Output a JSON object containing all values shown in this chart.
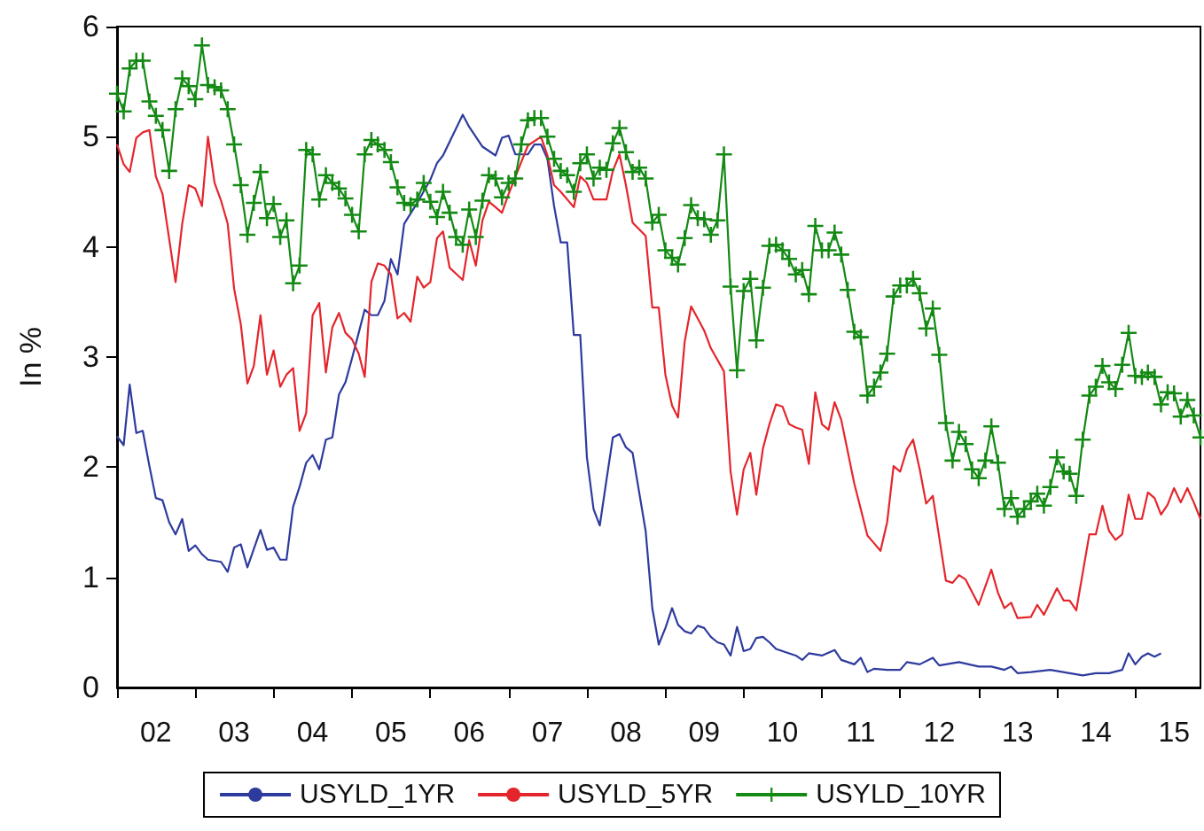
{
  "chart_data": {
    "type": "line",
    "ylabel": "In %",
    "xlim": [
      "2002-01",
      "2015-11"
    ],
    "xticks": [
      {
        "value": "2002-01",
        "label": null
      },
      {
        "value": "2002-07",
        "label": "02"
      },
      {
        "value": "2003-01",
        "label": null
      },
      {
        "value": "2003-07",
        "label": "03"
      },
      {
        "value": "2004-01",
        "label": null
      },
      {
        "value": "2004-07",
        "label": "04"
      },
      {
        "value": "2005-01",
        "label": null
      },
      {
        "value": "2005-07",
        "label": "05"
      },
      {
        "value": "2006-01",
        "label": null
      },
      {
        "value": "2006-07",
        "label": "06"
      },
      {
        "value": "2007-01",
        "label": null
      },
      {
        "value": "2007-07",
        "label": "07"
      },
      {
        "value": "2008-01",
        "label": null
      },
      {
        "value": "2008-07",
        "label": "08"
      },
      {
        "value": "2009-01",
        "label": null
      },
      {
        "value": "2009-07",
        "label": "09"
      },
      {
        "value": "2010-01",
        "label": null
      },
      {
        "value": "2010-07",
        "label": "10"
      },
      {
        "value": "2011-01",
        "label": null
      },
      {
        "value": "2011-07",
        "label": "11"
      },
      {
        "value": "2012-01",
        "label": null
      },
      {
        "value": "2012-07",
        "label": "12"
      },
      {
        "value": "2013-01",
        "label": null
      },
      {
        "value": "2013-07",
        "label": "13"
      },
      {
        "value": "2014-01",
        "label": null
      },
      {
        "value": "2014-07",
        "label": "14"
      },
      {
        "value": "2015-01",
        "label": null
      },
      {
        "value": "2015-07",
        "label": "15"
      }
    ],
    "ylim": [
      0,
      6
    ],
    "yticks": [
      0,
      1,
      2,
      3,
      4,
      5,
      6
    ],
    "grid": false,
    "legend": "bottom",
    "marker": "none",
    "series": [
      {
        "name": "USYLD_1YR",
        "color": "#2e3b9e",
        "x": [
          "2002-01",
          "2002-02",
          "2002-03",
          "2002-04",
          "2002-05",
          "2002-06",
          "2002-07",
          "2002-08",
          "2002-09",
          "2002-10",
          "2002-11",
          "2002-12",
          "2003-01",
          "2003-02",
          "2003-03",
          "2003-05",
          "2003-06",
          "2003-07",
          "2003-08",
          "2003-09",
          "2003-11",
          "2003-12",
          "2004-01",
          "2004-02",
          "2004-03",
          "2004-04",
          "2004-05",
          "2004-06",
          "2004-07",
          "2004-08",
          "2004-09",
          "2004-10",
          "2004-11",
          "2004-12",
          "2005-01",
          "2005-02",
          "2005-03",
          "2005-04",
          "2005-05",
          "2005-06",
          "2005-07",
          "2005-08",
          "2005-09",
          "2005-11",
          "2006-01",
          "2006-02",
          "2006-03",
          "2006-06",
          "2006-07",
          "2006-09",
          "2006-11",
          "2006-12",
          "2007-01",
          "2007-02",
          "2007-04",
          "2007-05",
          "2007-06",
          "2007-07",
          "2007-08",
          "2007-09",
          "2007-10",
          "2007-11",
          "2007-12",
          "2008-01",
          "2008-02",
          "2008-03",
          "2008-04",
          "2008-05",
          "2008-06",
          "2008-07",
          "2008-08",
          "2008-10",
          "2008-11",
          "2008-12",
          "2009-01",
          "2009-02",
          "2009-03",
          "2009-04",
          "2009-05",
          "2009-06",
          "2009-07",
          "2009-08",
          "2009-09",
          "2009-10",
          "2009-11",
          "2009-12",
          "2010-01",
          "2010-02",
          "2010-03",
          "2010-04",
          "2010-05",
          "2010-06",
          "2010-08",
          "2010-09",
          "2010-10",
          "2010-11",
          "2011-01",
          "2011-03",
          "2011-04",
          "2011-06",
          "2011-07",
          "2011-08",
          "2011-09",
          "2011-11",
          "2012-01",
          "2012-02",
          "2012-04",
          "2012-06",
          "2012-07",
          "2012-10",
          "2013-01",
          "2013-03",
          "2013-05",
          "2013-06",
          "2013-07",
          "2013-09",
          "2013-12",
          "2014-03",
          "2014-05",
          "2014-07",
          "2014-09",
          "2014-11",
          "2014-12",
          "2015-01",
          "2015-02",
          "2015-03",
          "2015-04",
          "2015-05"
        ],
        "values": [
          2.28,
          2.2,
          2.75,
          2.31,
          2.33,
          2.01,
          1.72,
          1.7,
          1.5,
          1.39,
          1.53,
          1.24,
          1.29,
          1.21,
          1.16,
          1.14,
          1.05,
          1.27,
          1.3,
          1.09,
          1.43,
          1.25,
          1.27,
          1.16,
          1.16,
          1.64,
          1.82,
          2.04,
          2.11,
          1.98,
          2.25,
          2.27,
          2.66,
          2.77,
          2.99,
          3.22,
          3.43,
          3.38,
          3.38,
          3.51,
          3.89,
          3.75,
          4.21,
          4.4,
          4.61,
          4.76,
          4.83,
          5.2,
          5.09,
          4.91,
          4.83,
          4.99,
          5.01,
          4.84,
          4.84,
          4.93,
          4.93,
          4.8,
          4.37,
          4.04,
          4.04,
          3.2,
          3.2,
          2.09,
          1.62,
          1.47,
          1.88,
          2.27,
          2.3,
          2.18,
          2.13,
          1.42,
          0.72,
          0.39,
          0.54,
          0.72,
          0.57,
          0.51,
          0.49,
          0.56,
          0.54,
          0.46,
          0.41,
          0.39,
          0.29,
          0.55,
          0.33,
          0.35,
          0.45,
          0.46,
          0.41,
          0.35,
          0.31,
          0.29,
          0.25,
          0.31,
          0.29,
          0.34,
          0.25,
          0.21,
          0.27,
          0.14,
          0.17,
          0.16,
          0.16,
          0.23,
          0.21,
          0.27,
          0.2,
          0.23,
          0.19,
          0.19,
          0.16,
          0.19,
          0.13,
          0.14,
          0.16,
          0.13,
          0.11,
          0.13,
          0.13,
          0.16,
          0.31,
          0.21,
          0.28,
          0.31,
          0.28,
          0.31
        ]
      },
      {
        "name": "USYLD_5YR",
        "color": "#e4262c",
        "x": [
          "2002-01",
          "2002-02",
          "2002-03",
          "2002-04",
          "2002-05",
          "2002-06",
          "2002-07",
          "2002-08",
          "2002-10",
          "2002-11",
          "2002-12",
          "2003-01",
          "2003-02",
          "2003-03",
          "2003-04",
          "2003-05",
          "2003-06",
          "2003-07",
          "2003-08",
          "2003-09",
          "2003-10",
          "2003-11",
          "2003-12",
          "2004-01",
          "2004-02",
          "2004-03",
          "2004-04",
          "2004-05",
          "2004-06",
          "2004-07",
          "2004-08",
          "2004-09",
          "2004-10",
          "2004-11",
          "2004-12",
          "2005-01",
          "2005-02",
          "2005-03",
          "2005-04",
          "2005-05",
          "2005-06",
          "2005-07",
          "2005-08",
          "2005-09",
          "2005-10",
          "2005-11",
          "2005-12",
          "2006-01",
          "2006-02",
          "2006-03",
          "2006-04",
          "2006-06",
          "2006-07",
          "2006-08",
          "2006-09",
          "2006-10",
          "2006-11",
          "2006-12",
          "2007-01",
          "2007-03",
          "2007-04",
          "2007-06",
          "2007-07",
          "2007-08",
          "2007-09",
          "2007-11",
          "2007-12",
          "2008-01",
          "2008-02",
          "2008-04",
          "2008-05",
          "2008-06",
          "2008-07",
          "2008-08",
          "2008-10",
          "2008-11",
          "2008-12",
          "2009-01",
          "2009-02",
          "2009-03",
          "2009-04",
          "2009-05",
          "2009-06",
          "2009-07",
          "2009-08",
          "2009-10",
          "2009-11",
          "2009-12",
          "2010-01",
          "2010-02",
          "2010-03",
          "2010-04",
          "2010-05",
          "2010-06",
          "2010-07",
          "2010-08",
          "2010-09",
          "2010-10",
          "2010-11",
          "2010-12",
          "2011-01",
          "2011-02",
          "2011-03",
          "2011-04",
          "2011-06",
          "2011-07",
          "2011-08",
          "2011-09",
          "2011-10",
          "2011-11",
          "2011-12",
          "2012-01",
          "2012-02",
          "2012-03",
          "2012-04",
          "2012-05",
          "2012-06",
          "2012-08",
          "2012-09",
          "2012-10",
          "2012-11",
          "2013-01",
          "2013-03",
          "2013-04",
          "2013-05",
          "2013-06",
          "2013-07",
          "2013-09",
          "2013-10",
          "2013-11",
          "2014-01",
          "2014-02",
          "2014-03",
          "2014-04",
          "2014-06",
          "2014-07",
          "2014-08",
          "2014-09",
          "2014-10",
          "2014-11",
          "2014-12",
          "2015-01",
          "2015-02",
          "2015-03",
          "2015-04",
          "2015-05",
          "2015-06",
          "2015-07",
          "2015-08",
          "2015-09",
          "2015-10",
          "2015-11"
        ],
        "values": [
          4.93,
          4.75,
          4.68,
          4.99,
          5.04,
          5.06,
          4.64,
          4.48,
          3.68,
          4.21,
          4.56,
          4.53,
          4.37,
          5.0,
          4.58,
          4.42,
          4.21,
          3.62,
          3.3,
          2.76,
          2.92,
          3.38,
          2.84,
          3.06,
          2.73,
          2.84,
          2.9,
          2.33,
          2.49,
          3.38,
          3.49,
          2.86,
          3.27,
          3.4,
          3.22,
          3.16,
          3.03,
          2.82,
          3.68,
          3.85,
          3.83,
          3.75,
          3.35,
          3.4,
          3.32,
          3.73,
          3.63,
          3.68,
          4.08,
          4.14,
          3.81,
          3.7,
          4.06,
          3.83,
          4.24,
          4.41,
          4.36,
          4.31,
          4.48,
          4.77,
          4.92,
          5.0,
          4.83,
          4.56,
          4.5,
          4.36,
          4.64,
          4.58,
          4.43,
          4.43,
          4.69,
          4.84,
          4.56,
          4.22,
          4.1,
          3.45,
          3.45,
          2.84,
          2.56,
          2.45,
          3.14,
          3.46,
          3.35,
          3.24,
          3.08,
          2.87,
          1.96,
          1.57,
          1.98,
          2.13,
          1.75,
          2.17,
          2.39,
          2.57,
          2.55,
          2.39,
          2.36,
          2.34,
          2.03,
          2.68,
          2.39,
          2.34,
          2.59,
          2.43,
          1.85,
          1.62,
          1.38,
          1.31,
          1.24,
          1.5,
          2.01,
          1.96,
          2.16,
          2.25,
          1.98,
          1.67,
          1.74,
          0.97,
          0.95,
          1.02,
          0.98,
          0.75,
          1.07,
          0.86,
          0.72,
          0.77,
          0.63,
          0.64,
          0.75,
          0.66,
          0.9,
          0.79,
          0.79,
          0.7,
          1.39,
          1.39,
          1.65,
          1.42,
          1.34,
          1.39,
          1.75,
          1.53,
          1.53,
          1.77,
          1.72,
          1.57,
          1.66,
          1.81,
          1.68,
          1.81,
          1.68,
          1.53
        ]
      },
      {
        "name": "USYLD_10YR",
        "color": "#138a13",
        "marker": "cross",
        "x": [
          "2002-01",
          "2002-02",
          "2002-03",
          "2002-04",
          "2002-05",
          "2002-06",
          "2002-07",
          "2002-08",
          "2002-09",
          "2002-10",
          "2002-11",
          "2002-12",
          "2003-01",
          "2003-02",
          "2003-03",
          "2003-04",
          "2003-05",
          "2003-06",
          "2003-07",
          "2003-08",
          "2003-09",
          "2003-10",
          "2003-11",
          "2003-12",
          "2004-01",
          "2004-02",
          "2004-03",
          "2004-04",
          "2004-05",
          "2004-06",
          "2004-07",
          "2004-08",
          "2004-09",
          "2004-10",
          "2004-11",
          "2004-12",
          "2005-01",
          "2005-02",
          "2005-03",
          "2005-04",
          "2005-05",
          "2005-06",
          "2005-07",
          "2005-08",
          "2005-09",
          "2005-10",
          "2005-11",
          "2005-12",
          "2006-01",
          "2006-02",
          "2006-03",
          "2006-04",
          "2006-05",
          "2006-06",
          "2006-07",
          "2006-08",
          "2006-09",
          "2006-10",
          "2006-11",
          "2006-12",
          "2007-01",
          "2007-02",
          "2007-03",
          "2007-04",
          "2007-05",
          "2007-06",
          "2007-07",
          "2007-08",
          "2007-09",
          "2007-10",
          "2007-11",
          "2007-12",
          "2008-01",
          "2008-02",
          "2008-03",
          "2008-04",
          "2008-05",
          "2008-06",
          "2008-07",
          "2008-08",
          "2008-09",
          "2008-10",
          "2008-11",
          "2008-12",
          "2009-01",
          "2009-02",
          "2009-03",
          "2009-04",
          "2009-05",
          "2009-06",
          "2009-07",
          "2009-08",
          "2009-09",
          "2009-10",
          "2009-11",
          "2009-12",
          "2010-01",
          "2010-02",
          "2010-03",
          "2010-04",
          "2010-05",
          "2010-06",
          "2010-07",
          "2010-08",
          "2010-09",
          "2010-10",
          "2010-11",
          "2010-12",
          "2011-01",
          "2011-02",
          "2011-03",
          "2011-04",
          "2011-05",
          "2011-06",
          "2011-07",
          "2011-08",
          "2011-09",
          "2011-10",
          "2011-11",
          "2011-12",
          "2012-01",
          "2012-02",
          "2012-03",
          "2012-04",
          "2012-05",
          "2012-06",
          "2012-07",
          "2012-08",
          "2012-09",
          "2012-10",
          "2012-11",
          "2012-12",
          "2013-01",
          "2013-02",
          "2013-03",
          "2013-04",
          "2013-05",
          "2013-06",
          "2013-07",
          "2013-08",
          "2013-09",
          "2013-10",
          "2013-11",
          "2013-12",
          "2014-01",
          "2014-02",
          "2014-03",
          "2014-04",
          "2014-05",
          "2014-06",
          "2014-07",
          "2014-08",
          "2014-09",
          "2014-10",
          "2014-11",
          "2014-12",
          "2015-01",
          "2015-02",
          "2015-03",
          "2015-04",
          "2015-05",
          "2015-06",
          "2015-07",
          "2015-08",
          "2015-09",
          "2015-10",
          "2015-11"
        ],
        "values": [
          5.39,
          5.23,
          5.62,
          5.69,
          5.69,
          5.32,
          5.19,
          5.06,
          4.69,
          5.25,
          5.53,
          5.46,
          5.34,
          5.83,
          5.47,
          5.45,
          5.42,
          5.25,
          4.93,
          4.56,
          4.11,
          4.4,
          4.68,
          4.26,
          4.39,
          4.09,
          4.24,
          3.67,
          3.83,
          4.88,
          4.84,
          4.43,
          4.65,
          4.58,
          4.53,
          4.44,
          4.29,
          4.14,
          4.84,
          4.97,
          4.93,
          4.88,
          4.77,
          4.54,
          4.4,
          4.38,
          4.43,
          4.58,
          4.41,
          4.27,
          4.5,
          4.31,
          4.09,
          4.02,
          4.34,
          4.09,
          4.42,
          4.65,
          4.62,
          4.45,
          4.58,
          4.62,
          4.93,
          5.15,
          5.17,
          5.17,
          5.0,
          4.8,
          4.69,
          4.65,
          4.5,
          4.76,
          4.84,
          4.62,
          4.72,
          4.7,
          4.94,
          5.08,
          4.86,
          4.68,
          4.72,
          4.62,
          4.22,
          4.29,
          3.97,
          3.9,
          3.84,
          4.08,
          4.38,
          4.26,
          4.25,
          4.11,
          4.24,
          4.84,
          3.64,
          2.88,
          3.6,
          3.71,
          3.15,
          3.63,
          4.01,
          4.02,
          3.97,
          3.89,
          3.75,
          3.79,
          3.57,
          4.19,
          3.97,
          3.97,
          4.13,
          3.93,
          3.61,
          3.23,
          3.18,
          2.65,
          2.73,
          2.86,
          3.03,
          3.55,
          3.65,
          3.65,
          3.71,
          3.58,
          3.26,
          3.44,
          3.02,
          2.4,
          2.06,
          2.32,
          2.21,
          1.98,
          1.9,
          2.06,
          2.37,
          2.04,
          1.62,
          1.72,
          1.55,
          1.62,
          1.69,
          1.76,
          1.65,
          1.82,
          2.09,
          1.96,
          1.94,
          1.74,
          2.25,
          2.65,
          2.73,
          2.92,
          2.77,
          2.71,
          2.93,
          3.22,
          2.83,
          2.82,
          2.86,
          2.82,
          2.57,
          2.68,
          2.67,
          2.46,
          2.61,
          2.47,
          2.27
        ]
      }
    ]
  }
}
